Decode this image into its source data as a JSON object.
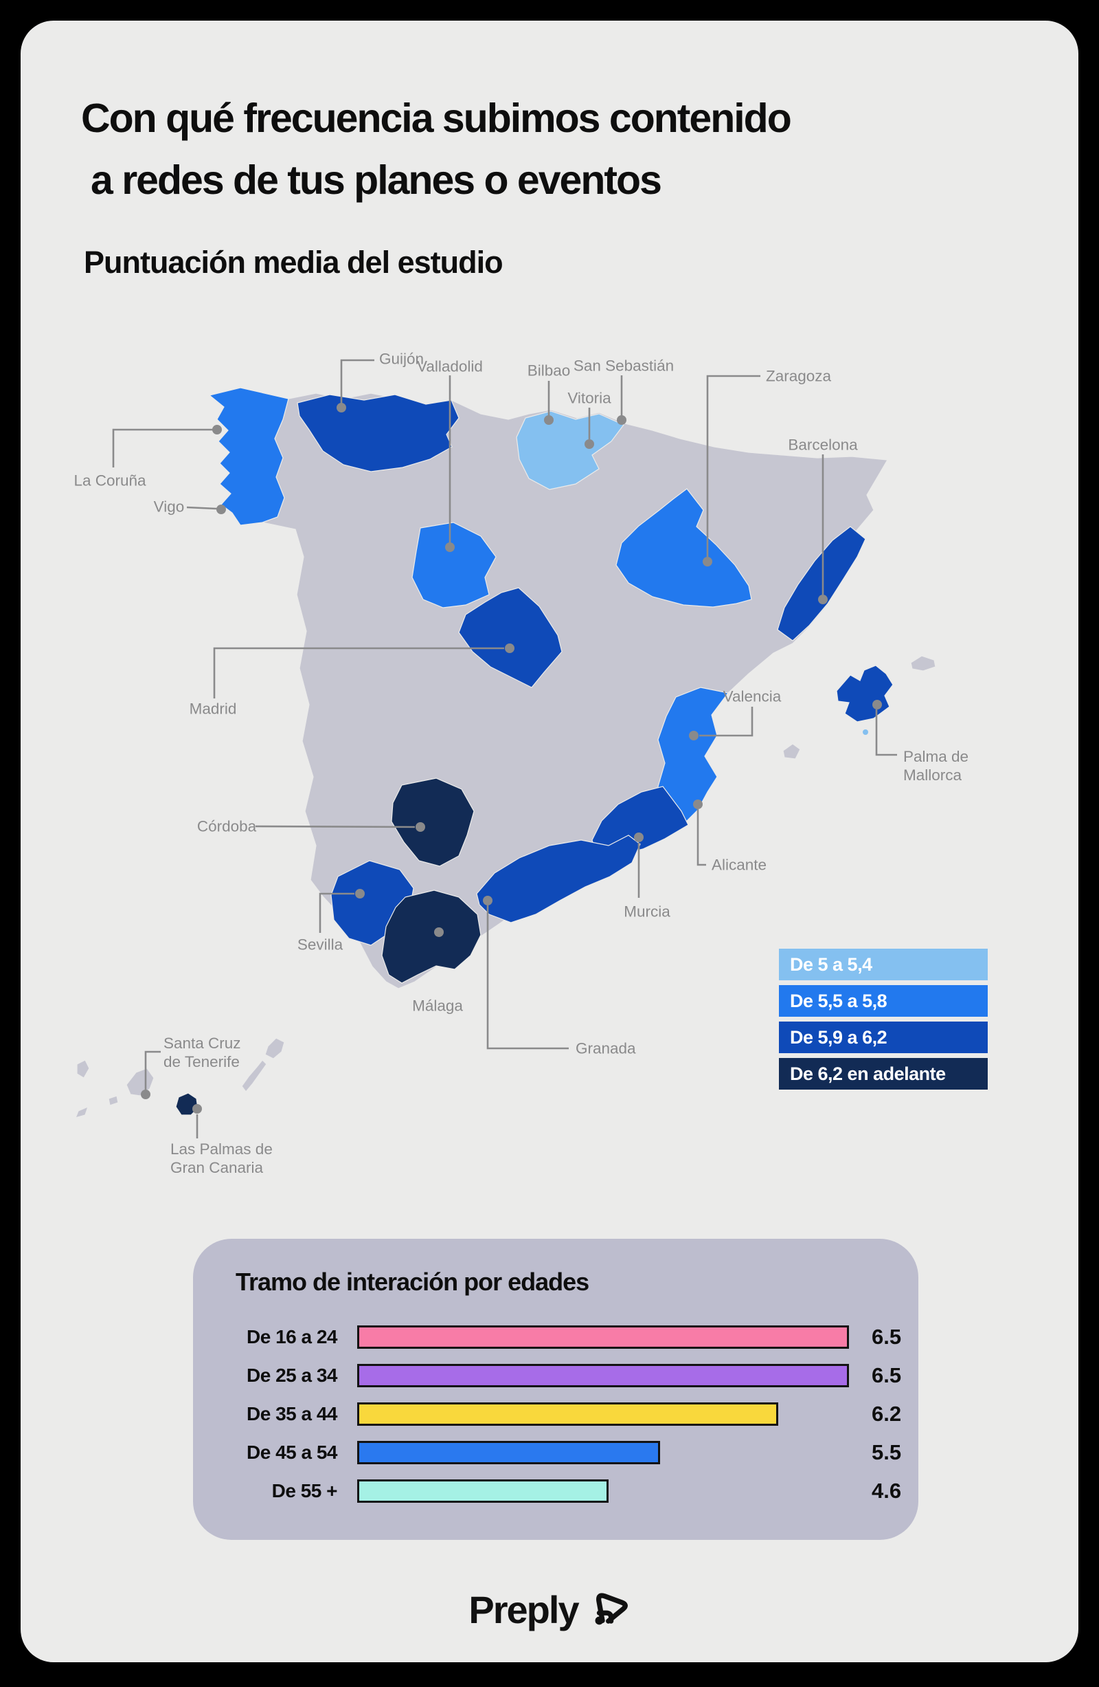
{
  "palette": {
    "page_bg": "#000000",
    "sea": "#EBEBEA",
    "land": "#C6C6D1",
    "light": "#84C0F0",
    "medium": "#2279EE",
    "dark": "#0F4AB8",
    "navy": "#122B55",
    "leader": "#8A8A8B",
    "panel": "#BDBDCE",
    "ink": "#111111"
  },
  "title_lines": [
    "Con qué frecuencia subimos contenido",
    "a redes de tus planes o eventos"
  ],
  "subtitle": "Puntuación media del estudio",
  "map": {
    "legend": [
      {
        "label": "De 5 a 5,4",
        "color": "#84C0F0"
      },
      {
        "label": "De 5,5 a 5,8",
        "color": "#2279EE"
      },
      {
        "label": "De 5,9 a 6,2",
        "color": "#0F4AB8"
      },
      {
        "label": "De 6,2 en adelante",
        "color": "#122B55"
      }
    ],
    "cities": [
      {
        "label": "Guijón"
      },
      {
        "label": "Valladolid"
      },
      {
        "label": "Bilbao"
      },
      {
        "label": "San Sebastián"
      },
      {
        "label": "Vitoria"
      },
      {
        "label": "Zaragoza"
      },
      {
        "label": "Barcelona"
      },
      {
        "label": "La Coruña"
      },
      {
        "label": "Vigo"
      },
      {
        "label": "Madrid"
      },
      {
        "label": "Valencia"
      },
      {
        "lines": [
          "Palma de",
          "Mallorca"
        ]
      },
      {
        "label": "Córdoba"
      },
      {
        "label": "Alicante"
      },
      {
        "label": "Murcia"
      },
      {
        "label": "Sevilla"
      },
      {
        "label": "Málaga"
      },
      {
        "label": "Granada"
      },
      {
        "lines": [
          "Santa Cruz",
          "de Tenerife"
        ]
      },
      {
        "lines": [
          "Las Palmas de",
          "Gran Canaria"
        ]
      }
    ]
  },
  "age_chart": {
    "title": "Tramo de interación por edades",
    "rows": [
      {
        "label": "De 16 a 24",
        "value": "6.5",
        "color": "#F87CA7",
        "width_pct": 100
      },
      {
        "label": "De 25 a 34",
        "value": "6.5",
        "color": "#A76CE8",
        "width_pct": 100
      },
      {
        "label": "De 35 a 44",
        "value": "6.2",
        "color": "#F9D83C",
        "width_pct": 85.5
      },
      {
        "label": "De 45 a 54",
        "value": "5.5",
        "color": "#2A79EF",
        "width_pct": 61.3
      },
      {
        "label": "De 55 +",
        "value": "4.6",
        "color": "#A5F1E5",
        "width_pct": 50.7
      }
    ]
  },
  "brand": {
    "wordmark": "Preply"
  },
  "chart_data": [
    {
      "type": "heatmap",
      "title": "Puntuación media del estudio — mapa de España",
      "legend_buckets": [
        "De 5 a 5,4",
        "De 5,5 a 5,8",
        "De 5,9 a 6,2",
        "De 6,2 en adelante"
      ],
      "points": [
        {
          "city": "Guijón",
          "bucket": "De 5,9 a 6,2"
        },
        {
          "city": "Valladolid",
          "bucket": "De 5,5 a 5,8"
        },
        {
          "city": "Bilbao",
          "bucket": "De 5 a 5,4"
        },
        {
          "city": "San Sebastián",
          "bucket": "De 5 a 5,4"
        },
        {
          "city": "Vitoria",
          "bucket": "De 5 a 5,4"
        },
        {
          "city": "Zaragoza",
          "bucket": "De 5,5 a 5,8"
        },
        {
          "city": "Barcelona",
          "bucket": "De 5,9 a 6,2"
        },
        {
          "city": "La Coruña",
          "bucket": "De 5,5 a 5,8"
        },
        {
          "city": "Vigo",
          "bucket": "De 5,5 a 5,8"
        },
        {
          "city": "Madrid",
          "bucket": "De 5,9 a 6,2"
        },
        {
          "city": "Valencia",
          "bucket": "De 5,5 a 5,8"
        },
        {
          "city": "Palma de Mallorca",
          "bucket": "De 5,9 a 6,2"
        },
        {
          "city": "Córdoba",
          "bucket": "De 6,2 en adelante"
        },
        {
          "city": "Alicante",
          "bucket": "De 5,5 a 5,8"
        },
        {
          "city": "Murcia",
          "bucket": "De 5,9 a 6,2"
        },
        {
          "city": "Sevilla",
          "bucket": "De 5,9 a 6,2"
        },
        {
          "city": "Málaga",
          "bucket": "De 6,2 en adelante"
        },
        {
          "city": "Granada",
          "bucket": "De 5,9 a 6,2"
        },
        {
          "city": "Santa Cruz de Tenerife",
          "bucket": "sin dato"
        },
        {
          "city": "Las Palmas de Gran Canaria",
          "bucket": "De 6,2 en adelante"
        }
      ]
    },
    {
      "type": "bar",
      "title": "Tramo de interación por edades",
      "orientation": "horizontal",
      "categories": [
        "De 16 a 24",
        "De 25 a 34",
        "De 35 a 44",
        "De 45 a 54",
        "De 55 +"
      ],
      "values": [
        6.5,
        6.5,
        6.2,
        5.5,
        4.6
      ],
      "xlim": [
        0,
        6.5
      ],
      "data_labels": true,
      "legend_position": "none",
      "grid": false
    }
  ]
}
